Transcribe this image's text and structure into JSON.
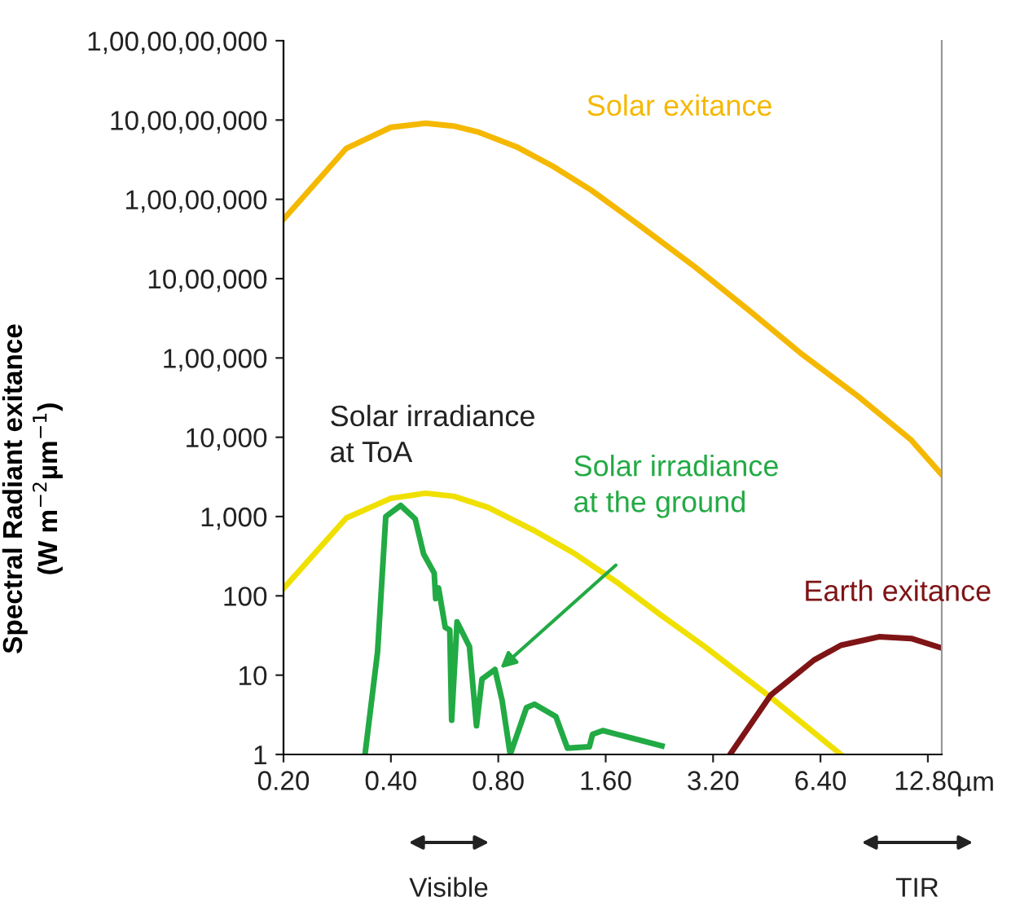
{
  "chart_data": {
    "type": "line",
    "xlabel": "µm",
    "ylabel": "Spectral Radiant exitance\n(W m$^{−2}$µm$^{−1}$)",
    "log": "xy",
    "xlim": [
      0.2,
      14
    ],
    "xticks": [
      {
        "value": 0.2,
        "label": "0.20"
      },
      {
        "value": 0.4,
        "label": "0.40"
      },
      {
        "value": 0.8,
        "label": "0.80"
      },
      {
        "value": 1.6,
        "label": "1.60"
      },
      {
        "value": 3.2,
        "label": "3.20"
      },
      {
        "value": 6.4,
        "label": "6.40"
      },
      {
        "value": 12.8,
        "label": "12.80"
      }
    ],
    "ylim": [
      1,
      1000000000
    ],
    "yticks": [
      1,
      10,
      100,
      {
        "value": 1000,
        "label": "1,000"
      },
      {
        "value": 10000,
        "label": "10,000"
      },
      {
        "value": 100000,
        "label": "1,00,000"
      },
      {
        "value": 1000000,
        "label": "10,00,000"
      },
      {
        "value": 10000000,
        "label": "1,00,00,000"
      },
      {
        "value": 100000000,
        "label": "10,00,00,000"
      },
      {
        "value": 1000000000,
        "label": "1,00,00,00,000"
      }
    ],
    "grid": false,
    "legend": false,
    "marker": "none",
    "line_style": "solid",
    "series": [
      {
        "name": "Solar exitance",
        "color": "#f5b800",
        "x": [
          0.2,
          0.3,
          0.4,
          0.5,
          0.6,
          0.7,
          0.9,
          1.14,
          1.46,
          1.99,
          2.85,
          4.03,
          5.7,
          8.15,
          11.5,
          13.9
        ],
        "values": [
          5600000,
          44000000,
          81000000,
          91000000,
          84000000,
          71000000,
          46000000,
          26000000,
          13000000,
          4700000,
          1400000,
          400000,
          110000,
          33000,
          9200,
          3500
        ]
      },
      {
        "name": "Solar irradiance\nat ToA",
        "color": "#f0e000",
        "x": [
          0.2,
          0.3,
          0.4,
          0.5,
          0.6,
          0.75,
          1.0,
          1.31,
          1.74,
          2.3,
          3.03,
          4.56,
          7.3
        ],
        "values": [
          124,
          960,
          1700,
          1970,
          1800,
          1300,
          680,
          340,
          143,
          56,
          23,
          5.6,
          1
        ]
      },
      {
        "name": "Solar irradiance\nat the ground",
        "color": "#22aa44",
        "x": [
          0.339,
          0.367,
          0.387,
          0.426,
          0.468,
          0.494,
          0.529,
          0.534,
          0.544,
          0.568,
          0.585,
          0.592,
          0.613,
          0.664,
          0.695,
          0.72,
          0.783,
          0.82,
          0.864,
          0.96,
          1.01,
          1.16,
          1.25,
          1.44,
          1.47,
          1.57,
          2.3
        ],
        "values": [
          1.06,
          19.6,
          1000,
          1380,
          930,
          337,
          194,
          92,
          126,
          40,
          37,
          2.7,
          47,
          23,
          2.3,
          8.9,
          11.8,
          4.8,
          1.0,
          3.9,
          4.3,
          3.0,
          1.2,
          1.25,
          1.8,
          2.0,
          1.28
        ]
      },
      {
        "name": "Earth exitance",
        "color": "#7f1416",
        "x": [
          3.57,
          4.64,
          6.14,
          7.3,
          9.34,
          11.5,
          14
        ],
        "values": [
          1,
          5.6,
          15.5,
          23.8,
          30.5,
          29,
          22
        ]
      }
    ],
    "annotations": [
      "Visible",
      "TIR"
    ]
  }
}
